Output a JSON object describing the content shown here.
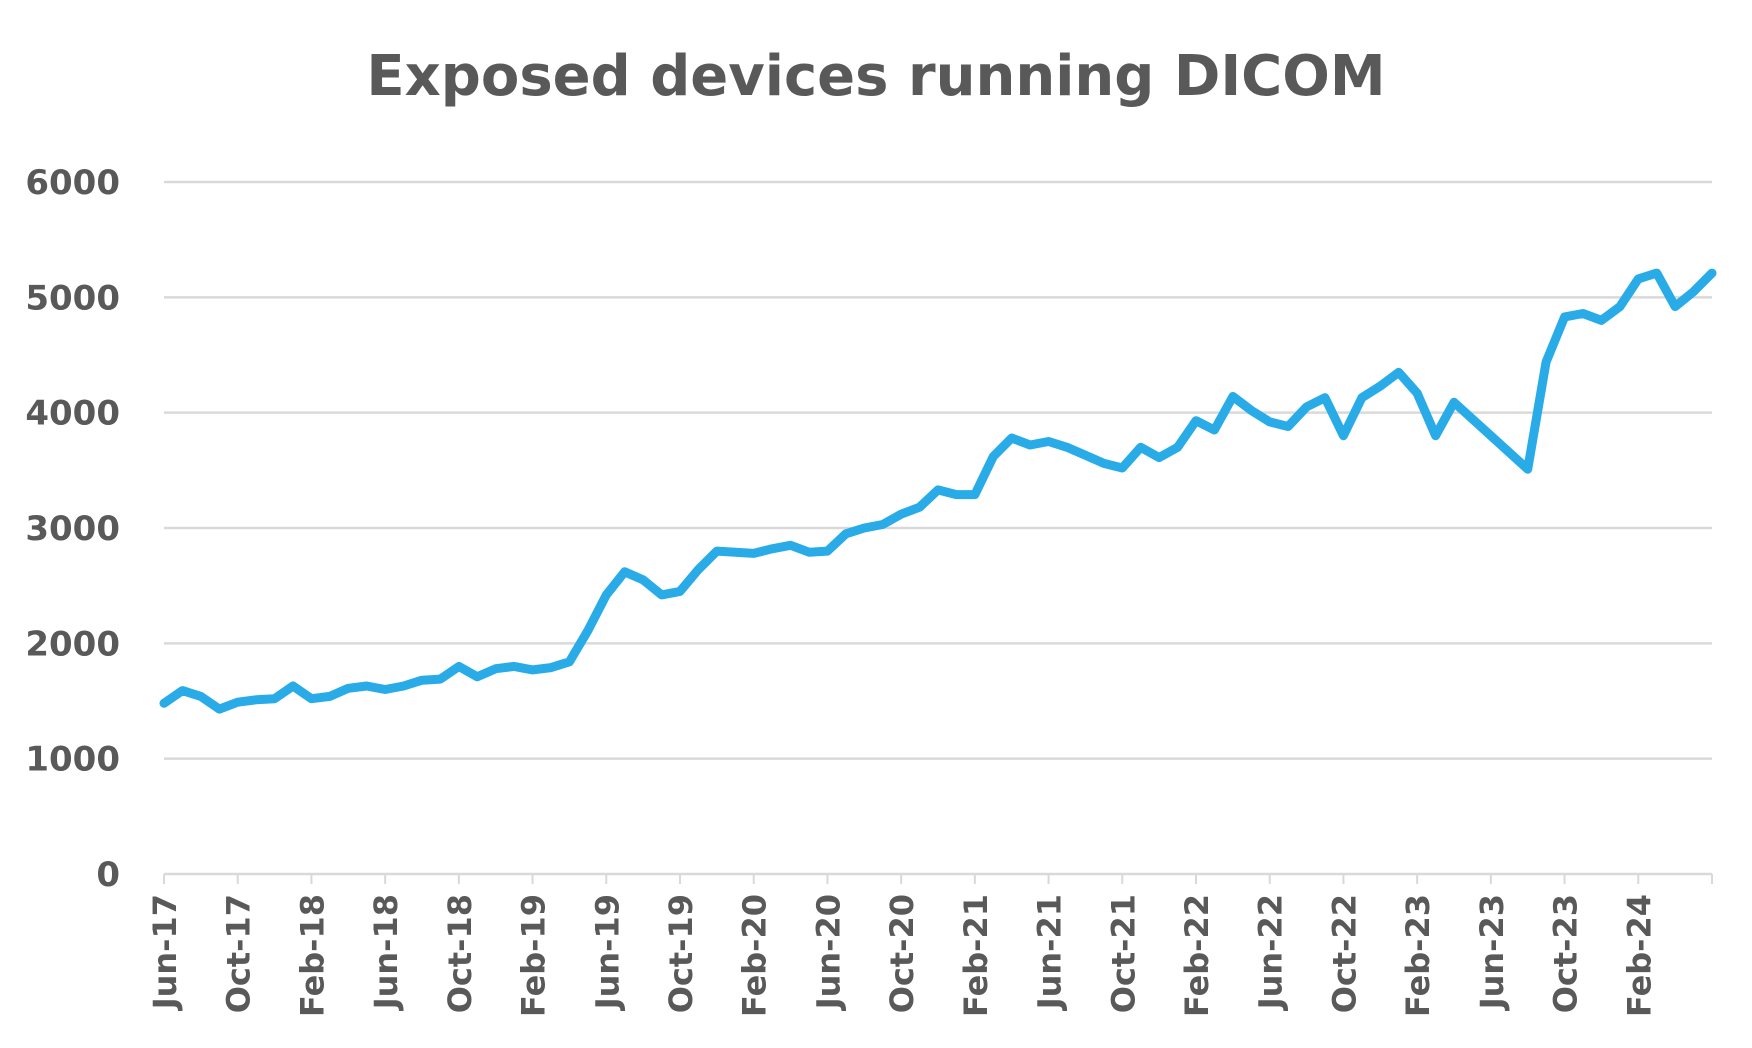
{
  "chart_data": {
    "type": "line",
    "title": "Exposed devices running DICOM",
    "xlabel": "",
    "ylabel": "",
    "ylim": [
      0,
      6000
    ],
    "yticks": [
      0,
      1000,
      2000,
      3000,
      4000,
      5000,
      6000
    ],
    "x_tick_labels": [
      "Jun-17",
      "Oct-17",
      "Feb-18",
      "Jun-18",
      "Oct-18",
      "Feb-19",
      "Jun-19",
      "Oct-19",
      "Feb-20",
      "Jun-20",
      "Oct-20",
      "Feb-21",
      "Jun-21",
      "Oct-21",
      "Feb-22",
      "Jun-22",
      "Oct-22",
      "Feb-23",
      "Jun-23",
      "Oct-23",
      "Feb-24"
    ],
    "x_tick_months": [
      0,
      4,
      8,
      12,
      16,
      20,
      24,
      28,
      32,
      36,
      40,
      44,
      48,
      52,
      56,
      60,
      64,
      68,
      72,
      76,
      80
    ],
    "x_range_months": [
      0,
      84
    ],
    "grid": true,
    "line_color": "#29abe8",
    "grid_color": "#d9d9d9",
    "series": [
      {
        "points": [
          [
            0,
            1480
          ],
          [
            1,
            1590
          ],
          [
            2,
            1540
          ],
          [
            3,
            1430
          ],
          [
            4,
            1490
          ],
          [
            5,
            1510
          ],
          [
            6,
            1520
          ],
          [
            7,
            1630
          ],
          [
            8,
            1520
          ],
          [
            9,
            1540
          ],
          [
            10,
            1610
          ],
          [
            11,
            1630
          ],
          [
            12,
            1600
          ],
          [
            13,
            1630
          ],
          [
            14,
            1680
          ],
          [
            15,
            1690
          ],
          [
            16,
            1800
          ],
          [
            17,
            1710
          ],
          [
            18,
            1780
          ],
          [
            19,
            1800
          ],
          [
            20,
            1770
          ],
          [
            21,
            1790
          ],
          [
            22,
            1840
          ],
          [
            23,
            2110
          ],
          [
            24,
            2420
          ],
          [
            25,
            2620
          ],
          [
            26,
            2550
          ],
          [
            27,
            2420
          ],
          [
            28,
            2450
          ],
          [
            29,
            2640
          ],
          [
            30,
            2800
          ],
          [
            31,
            2790
          ],
          [
            32,
            2780
          ],
          [
            33,
            2820
          ],
          [
            34,
            2850
          ],
          [
            35,
            2790
          ],
          [
            36,
            2800
          ],
          [
            37,
            2950
          ],
          [
            38,
            3000
          ],
          [
            39,
            3030
          ],
          [
            40,
            3120
          ],
          [
            41,
            3180
          ],
          [
            42,
            3330
          ],
          [
            43,
            3290
          ],
          [
            44,
            3290
          ],
          [
            45,
            3620
          ],
          [
            46,
            3780
          ],
          [
            47,
            3720
          ],
          [
            48,
            3750
          ],
          [
            49,
            3700
          ],
          [
            50,
            3630
          ],
          [
            51,
            3560
          ],
          [
            52,
            3520
          ],
          [
            53,
            3700
          ],
          [
            54,
            3610
          ],
          [
            55,
            3700
          ],
          [
            56,
            3930
          ],
          [
            57,
            3850
          ],
          [
            58,
            4140
          ],
          [
            59,
            4020
          ],
          [
            60,
            3920
          ],
          [
            61,
            3880
          ],
          [
            62,
            4050
          ],
          [
            63,
            4130
          ],
          [
            64,
            3800
          ],
          [
            65,
            4130
          ],
          [
            66,
            4230
          ],
          [
            67,
            4350
          ],
          [
            68,
            4170
          ],
          [
            69,
            3800
          ],
          [
            70,
            4090
          ],
          [
            74,
            3510
          ],
          [
            75,
            4440
          ],
          [
            76,
            4830
          ],
          [
            77,
            4860
          ],
          [
            78,
            4800
          ],
          [
            79,
            4920
          ],
          [
            80,
            5160
          ],
          [
            81,
            5210
          ],
          [
            82,
            4920
          ],
          [
            83,
            5050
          ],
          [
            84,
            5210
          ]
        ]
      }
    ]
  }
}
